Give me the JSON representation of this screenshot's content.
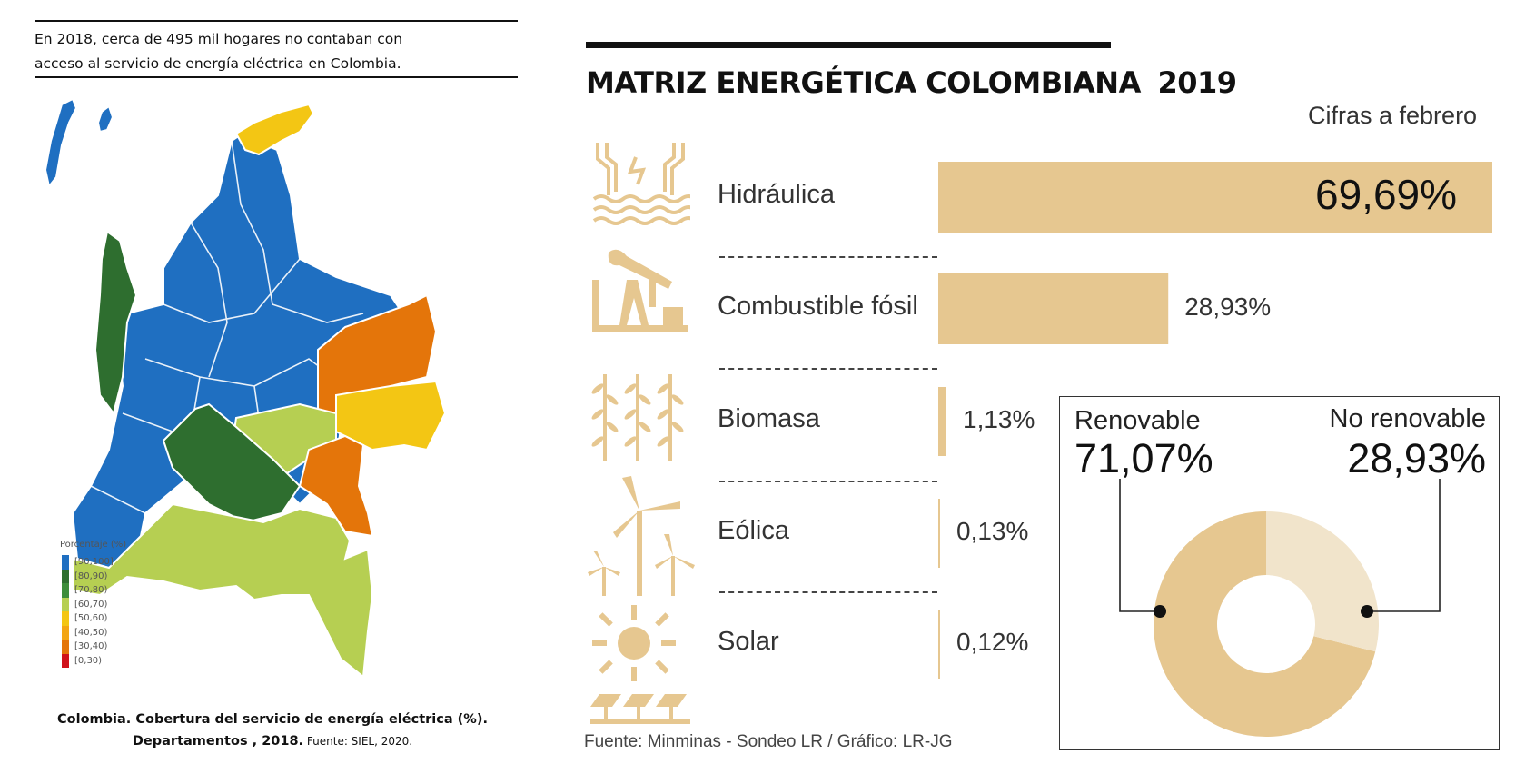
{
  "left": {
    "intro_line1": "En 2018, cerca de 495 mil hogares no contaban con",
    "intro_line2": "acceso al servicio de energía eléctrica en Colombia.",
    "legend_title": "Porcentaje (%)",
    "legend": [
      {
        "label": "[90,100]",
        "color": "#1f6fc1"
      },
      {
        "label": "[80,90)",
        "color": "#2e6e2f"
      },
      {
        "label": "[70,80)",
        "color": "#3d8d3a"
      },
      {
        "label": "[60,70)",
        "color": "#b6cf52"
      },
      {
        "label": "[50,60)",
        "color": "#f3c614"
      },
      {
        "label": "[40,50)",
        "color": "#f3a614"
      },
      {
        "label": "[30,40)",
        "color": "#e4750a"
      },
      {
        "label": "[0,30)",
        "color": "#d0121b"
      }
    ],
    "caption_line1": "Colombia. Cobertura del servicio de energía eléctrica (%).",
    "caption_line2_bold": "Departamentos",
    "caption_line2_mid": " , 2018.",
    "caption_line2_small": " Fuente: SIEL, 2020."
  },
  "right": {
    "title": "MATRIZ ENERGÉTICA COLOMBIANA",
    "title_year": "2019",
    "subtitle": "Cifras a febrero",
    "source": "Fuente: Minminas - Sondeo LR / Gráfico: LR-JG",
    "bar_color": "#e6c790"
  },
  "chart_data": [
    {
      "type": "bar",
      "title": "MATRIZ ENERGÉTICA COLOMBIANA 2019",
      "subtitle": "Cifras a febrero",
      "categories": [
        "Hidráulica",
        "Combustible fósil",
        "Biomasa",
        "Eólica",
        "Solar"
      ],
      "values": [
        69.69,
        28.93,
        1.13,
        0.13,
        0.12
      ],
      "value_labels": [
        "69,69%",
        "28,93%",
        "1,13%",
        "0,13%",
        "0,12%"
      ],
      "orientation": "horizontal"
    },
    {
      "type": "pie",
      "style": "donut",
      "labels": [
        "Renovable",
        "No renovable"
      ],
      "values": [
        71.07,
        28.93
      ],
      "value_labels": [
        "71,07%",
        "28,93%"
      ],
      "colors": [
        "#e6c790",
        "#f1e4cb"
      ]
    }
  ]
}
